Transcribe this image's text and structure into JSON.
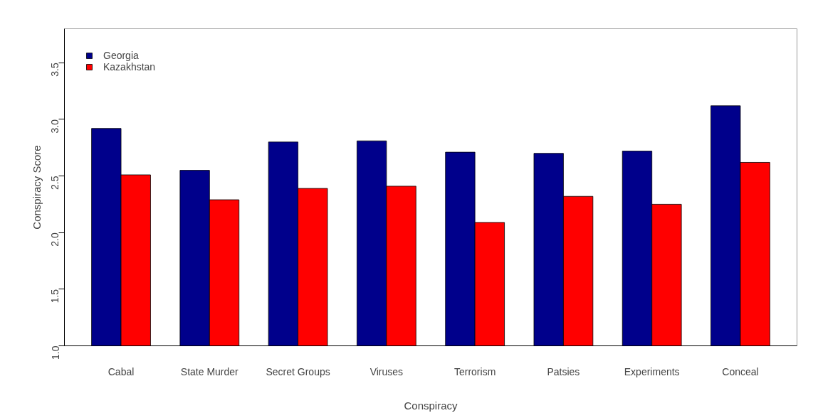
{
  "chart_data": {
    "type": "bar",
    "xlabel": "Conspiracy",
    "ylabel": "Conspiracy Score",
    "categories": [
      "Cabal",
      "State Murder",
      "Secret Groups",
      "Viruses",
      "Terrorism",
      "Patsies",
      "Experiments",
      "Conceal"
    ],
    "series": [
      {
        "name": "Georgia",
        "color": "#00008b",
        "values": [
          2.92,
          2.55,
          2.8,
          2.81,
          2.71,
          2.7,
          2.72,
          3.12
        ]
      },
      {
        "name": "Kazakhstan",
        "color": "#ff0000",
        "values": [
          2.51,
          2.29,
          2.39,
          2.41,
          2.09,
          2.32,
          2.25,
          2.62
        ]
      }
    ],
    "ylim": [
      1.0,
      3.8
    ],
    "yticks": [
      {
        "value": 1.0,
        "label": "1.0"
      },
      1.5,
      {
        "value": 2.0,
        "label": "2.0"
      },
      2.5,
      {
        "value": 3.0,
        "label": "3.0"
      },
      3.5
    ],
    "grid": false,
    "legend": "top left"
  }
}
